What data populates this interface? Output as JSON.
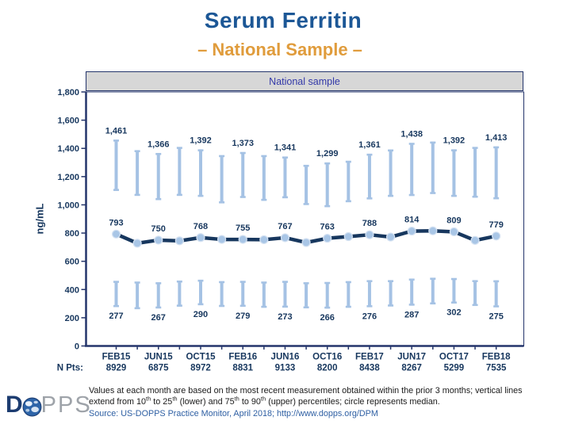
{
  "title": "Serum Ferritin",
  "subtitle": "– National Sample –",
  "chart_data": {
    "type": "line",
    "legend_label": "National sample",
    "ylabel": "ng/mL",
    "ylim": [
      0,
      1800
    ],
    "yticks": [
      0,
      200,
      400,
      600,
      800,
      1000,
      1200,
      1400,
      1600,
      1800
    ],
    "n_pts_caption": "N Pts:",
    "points": [
      {
        "label": "FEB15",
        "labeled": true,
        "p90": 1461,
        "p75": 1100,
        "median": 793,
        "p25": 460,
        "p10": 277,
        "n_pts": "8929"
      },
      {
        "label": "",
        "labeled": false,
        "p90": 1386,
        "p75": 1065,
        "median": 728,
        "p25": 455,
        "p10": 262,
        "n_pts": ""
      },
      {
        "label": "JUN15",
        "labeled": true,
        "p90": 1366,
        "p75": 1035,
        "median": 750,
        "p25": 450,
        "p10": 267,
        "n_pts": "6875"
      },
      {
        "label": "",
        "labeled": false,
        "p90": 1409,
        "p75": 1065,
        "median": 745,
        "p25": 462,
        "p10": 280,
        "n_pts": ""
      },
      {
        "label": "OCT15",
        "labeled": true,
        "p90": 1392,
        "p75": 1058,
        "median": 768,
        "p25": 468,
        "p10": 290,
        "n_pts": "8972"
      },
      {
        "label": "",
        "labeled": false,
        "p90": 1351,
        "p75": 1012,
        "median": 755,
        "p25": 458,
        "p10": 278,
        "n_pts": ""
      },
      {
        "label": "FEB16",
        "labeled": true,
        "p90": 1373,
        "p75": 1050,
        "median": 755,
        "p25": 460,
        "p10": 279,
        "n_pts": "8831"
      },
      {
        "label": "",
        "labeled": false,
        "p90": 1351,
        "p75": 1030,
        "median": 753,
        "p25": 455,
        "p10": 272,
        "n_pts": ""
      },
      {
        "label": "JUN16",
        "labeled": true,
        "p90": 1341,
        "p75": 1048,
        "median": 767,
        "p25": 460,
        "p10": 273,
        "n_pts": "9133"
      },
      {
        "label": "",
        "labeled": false,
        "p90": 1282,
        "p75": 1000,
        "median": 733,
        "p25": 450,
        "p10": 268,
        "n_pts": ""
      },
      {
        "label": "OCT16",
        "labeled": true,
        "p90": 1299,
        "p75": 985,
        "median": 763,
        "p25": 452,
        "p10": 266,
        "n_pts": "8200"
      },
      {
        "label": "",
        "labeled": false,
        "p90": 1311,
        "p75": 1020,
        "median": 775,
        "p25": 458,
        "p10": 272,
        "n_pts": ""
      },
      {
        "label": "FEB17",
        "labeled": true,
        "p90": 1361,
        "p75": 1040,
        "median": 788,
        "p25": 465,
        "p10": 276,
        "n_pts": "8438"
      },
      {
        "label": "",
        "labeled": false,
        "p90": 1391,
        "p75": 1058,
        "median": 772,
        "p25": 465,
        "p10": 281,
        "n_pts": ""
      },
      {
        "label": "JUN17",
        "labeled": true,
        "p90": 1438,
        "p75": 1064,
        "median": 814,
        "p25": 476,
        "p10": 287,
        "n_pts": "8267"
      },
      {
        "label": "",
        "labeled": false,
        "p90": 1447,
        "p75": 1078,
        "median": 816,
        "p25": 482,
        "p10": 296,
        "n_pts": ""
      },
      {
        "label": "OCT17",
        "labeled": true,
        "p90": 1392,
        "p75": 1058,
        "median": 809,
        "p25": 480,
        "p10": 302,
        "n_pts": "5299"
      },
      {
        "label": "",
        "labeled": false,
        "p90": 1409,
        "p75": 1052,
        "median": 748,
        "p25": 465,
        "p10": 285,
        "n_pts": ""
      },
      {
        "label": "FEB18",
        "labeled": true,
        "p90": 1413,
        "p75": 1041,
        "median": 779,
        "p25": 464,
        "p10": 275,
        "n_pts": "7535"
      }
    ]
  },
  "footnote": "Values at each month are based on the most recent measurement obtained within the prior 3 months; vertical lines extend from 10th to 25th (lower) and 75th to 90th (upper) percentiles; circle represents median.",
  "source": "Source: US-DOPPS Practice Monitor, April 2018; http://www.dopps.org/DPM",
  "logo": {
    "d": "D",
    "rest": "PPS"
  },
  "colors": {
    "title_blue": "#1C5796",
    "accent_orange": "#E09C3C",
    "navy": "#17375E",
    "axis_navy": "#24356B",
    "bar_blue": "#A5C2E4",
    "circle_fill": "#A9C6E6",
    "circle_stroke": "#D5E2F2",
    "band_fill": "#D7D7D7",
    "band_text": "#3238A8",
    "source_blue": "#2E5FA3"
  }
}
